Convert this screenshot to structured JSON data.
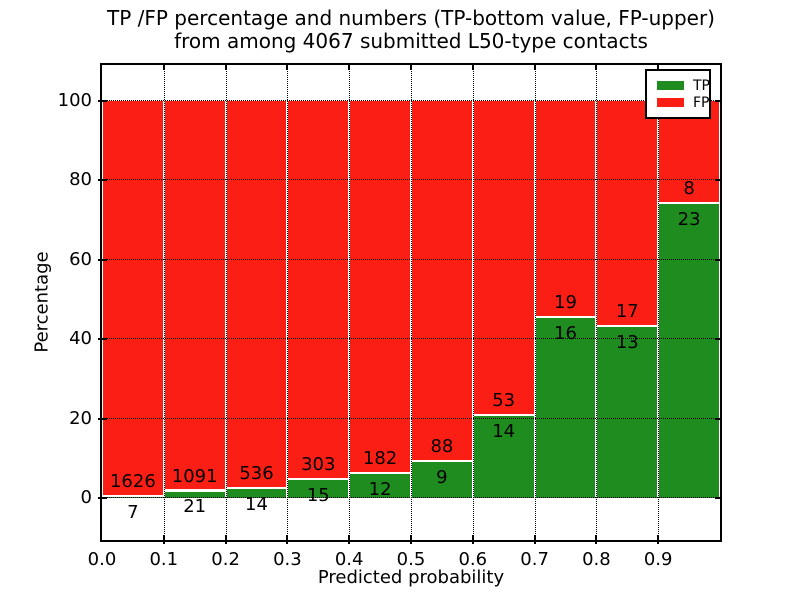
{
  "title_line1": "TP /FP percentage and numbers (TP-bottom value, FP-upper)",
  "title_line2": "from among 4067 submitted L50-type contacts",
  "colors": {
    "tp_green": "#1e8c1e",
    "fp_red": "#fb1e15",
    "grid": "#000000",
    "background": "#ffffff"
  },
  "legend": {
    "position": "upper right",
    "entries": [
      {
        "label": "TP",
        "color": "#1e8c1e"
      },
      {
        "label": "FP",
        "color": "#fb1e15"
      }
    ]
  },
  "chart_data": {
    "type": "bar",
    "stacked": true,
    "title": "TP /FP percentage and numbers (TP-bottom value, FP-upper) from among 4067 submitted L50-type contacts",
    "xlabel": "Predicted probability",
    "ylabel": "Percentage",
    "x_tick_labels": [
      "0.0",
      "0.1",
      "0.2",
      "0.3",
      "0.4",
      "0.5",
      "0.6",
      "0.7",
      "0.8",
      "0.9"
    ],
    "y_ticks": [
      0,
      20,
      40,
      60,
      80,
      100
    ],
    "x_range": [
      0.0,
      1.0
    ],
    "y_display_range": [
      -11,
      110
    ],
    "bin_width": 0.1,
    "grid": "dotted",
    "total_contacts": 4067,
    "series_names": [
      "TP",
      "FP"
    ],
    "bins": [
      {
        "x_start": 0.0,
        "x_end": 0.1,
        "tp": 7,
        "fp": 1626,
        "tp_pct": 0.43
      },
      {
        "x_start": 0.1,
        "x_end": 0.2,
        "tp": 21,
        "fp": 1091,
        "tp_pct": 1.89
      },
      {
        "x_start": 0.2,
        "x_end": 0.3,
        "tp": 14,
        "fp": 536,
        "tp_pct": 2.55
      },
      {
        "x_start": 0.3,
        "x_end": 0.4,
        "tp": 15,
        "fp": 303,
        "tp_pct": 4.72
      },
      {
        "x_start": 0.4,
        "x_end": 0.5,
        "tp": 12,
        "fp": 182,
        "tp_pct": 6.19
      },
      {
        "x_start": 0.5,
        "x_end": 0.6,
        "tp": 9,
        "fp": 88,
        "tp_pct": 9.28
      },
      {
        "x_start": 0.6,
        "x_end": 0.7,
        "tp": 14,
        "fp": 53,
        "tp_pct": 20.9
      },
      {
        "x_start": 0.7,
        "x_end": 0.8,
        "tp": 16,
        "fp": 19,
        "tp_pct": 45.71
      },
      {
        "x_start": 0.8,
        "x_end": 0.9,
        "tp": 13,
        "fp": 17,
        "tp_pct": 43.33
      },
      {
        "x_start": 0.9,
        "x_end": 1.0,
        "tp": 23,
        "fp": 8,
        "tp_pct": 74.19
      }
    ]
  }
}
